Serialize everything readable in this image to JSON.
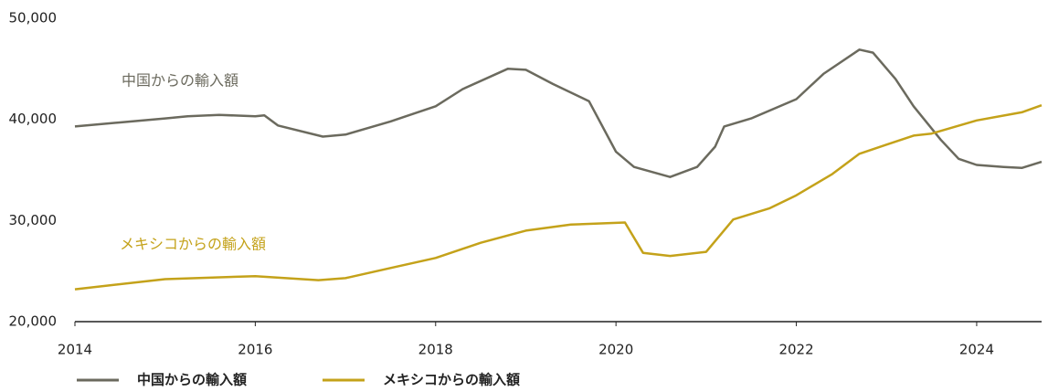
{
  "chart_data": {
    "type": "line",
    "xlim": [
      2014,
      2024.72
    ],
    "xticks": [
      2014,
      2016,
      2018,
      2020,
      2022,
      2024
    ],
    "ylim": [
      20000,
      50000
    ],
    "yticks": [
      {
        "value": 20000,
        "label": "20,000"
      },
      {
        "value": 30000,
        "label": "30,000"
      },
      {
        "value": 40000,
        "label": "40,000"
      },
      {
        "value": 50000,
        "label": "50,000"
      }
    ],
    "annotations": [
      "中国からの輸入額",
      "メキシコからの輸入額"
    ],
    "legend": "bottom",
    "series": [
      {
        "name": "中国からの輸入額",
        "color": "#6b6a5e",
        "x": [
          2014.0,
          2014.5,
          2015.0,
          2015.25,
          2015.6,
          2016.0,
          2016.1,
          2016.25,
          2016.75,
          2017.0,
          2017.5,
          2018.0,
          2018.3,
          2018.8,
          2019.0,
          2019.3,
          2019.7,
          2020.0,
          2020.2,
          2020.6,
          2020.9,
          2021.1,
          2021.2,
          2021.5,
          2022.0,
          2022.3,
          2022.7,
          2022.85,
          2023.1,
          2023.3,
          2023.6,
          2023.8,
          2024.0,
          2024.3,
          2024.5,
          2024.72
        ],
        "values": [
          39300,
          39700,
          40100,
          40300,
          40450,
          40300,
          40400,
          39400,
          38300,
          38500,
          39800,
          41300,
          43000,
          45000,
          44900,
          43500,
          41800,
          36800,
          35300,
          34300,
          35300,
          37300,
          39300,
          40100,
          42000,
          44500,
          46900,
          46600,
          44000,
          41300,
          38000,
          36100,
          35500,
          35300,
          35200,
          35800
        ]
      },
      {
        "name": "メキシコからの輸入額",
        "color": "#c4a21a",
        "x": [
          2014.0,
          2015.0,
          2016.0,
          2016.7,
          2017.0,
          2017.5,
          2018.0,
          2018.5,
          2019.0,
          2019.5,
          2020.1,
          2020.3,
          2020.6,
          2021.0,
          2021.3,
          2021.7,
          2022.0,
          2022.4,
          2022.7,
          2023.0,
          2023.3,
          2023.5,
          2024.0,
          2024.5,
          2024.72
        ],
        "values": [
          23200,
          24200,
          24500,
          24100,
          24300,
          25300,
          26300,
          27800,
          29000,
          29600,
          29800,
          26800,
          26500,
          26900,
          30100,
          31200,
          32500,
          34600,
          36600,
          37500,
          38400,
          38600,
          39900,
          40700,
          41400
        ]
      }
    ]
  }
}
